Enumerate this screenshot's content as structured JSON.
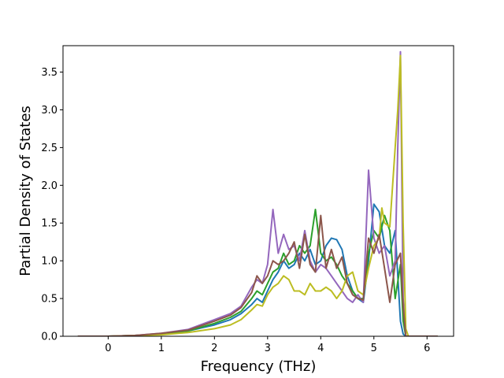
{
  "chart_data": {
    "type": "line",
    "title": "",
    "xlabel": "Frequency (THz)",
    "ylabel": "Partial Density of States",
    "xlim": [
      -0.85,
      6.5
    ],
    "ylim": [
      0.0,
      3.85
    ],
    "xticks": [
      0,
      1,
      2,
      3,
      4,
      5,
      6
    ],
    "xtick_labels": [
      "0",
      "1",
      "2",
      "3",
      "4",
      "5",
      "6"
    ],
    "yticks": [
      0.0,
      0.5,
      1.0,
      1.5,
      2.0,
      2.5,
      3.0,
      3.5
    ],
    "ytick_labels": [
      "0.0",
      "0.5",
      "1.0",
      "1.5",
      "2.0",
      "2.5",
      "3.0",
      "3.5"
    ],
    "grid": false,
    "legend": "none",
    "series": [
      {
        "color": "#1f77b4",
        "points": [
          [
            -0.57,
            0
          ],
          [
            0,
            0
          ],
          [
            0.5,
            0.01
          ],
          [
            1,
            0.03
          ],
          [
            1.5,
            0.07
          ],
          [
            2,
            0.15
          ],
          [
            2.3,
            0.22
          ],
          [
            2.5,
            0.3
          ],
          [
            2.7,
            0.42
          ],
          [
            2.8,
            0.5
          ],
          [
            2.9,
            0.45
          ],
          [
            3.0,
            0.6
          ],
          [
            3.1,
            0.75
          ],
          [
            3.2,
            0.85
          ],
          [
            3.3,
            1.0
          ],
          [
            3.4,
            0.9
          ],
          [
            3.5,
            0.95
          ],
          [
            3.6,
            1.1
          ],
          [
            3.7,
            1.0
          ],
          [
            3.8,
            1.15
          ],
          [
            3.9,
            0.95
          ],
          [
            4.0,
            1.0
          ],
          [
            4.1,
            1.2
          ],
          [
            4.2,
            1.3
          ],
          [
            4.3,
            1.28
          ],
          [
            4.4,
            1.15
          ],
          [
            4.5,
            0.8
          ],
          [
            4.6,
            0.6
          ],
          [
            4.7,
            0.5
          ],
          [
            4.8,
            0.45
          ],
          [
            4.9,
            1.0
          ],
          [
            5.0,
            1.75
          ],
          [
            5.1,
            1.65
          ],
          [
            5.2,
            1.2
          ],
          [
            5.3,
            1.1
          ],
          [
            5.4,
            1.4
          ],
          [
            5.5,
            0.2
          ],
          [
            5.55,
            0.03
          ],
          [
            5.6,
            0
          ],
          [
            6.2,
            0
          ]
        ]
      },
      {
        "color": "#2ca02c",
        "points": [
          [
            -0.57,
            0
          ],
          [
            0,
            0
          ],
          [
            0.5,
            0.01
          ],
          [
            1,
            0.03
          ],
          [
            1.5,
            0.07
          ],
          [
            2,
            0.17
          ],
          [
            2.3,
            0.25
          ],
          [
            2.5,
            0.33
          ],
          [
            2.7,
            0.5
          ],
          [
            2.8,
            0.6
          ],
          [
            2.9,
            0.55
          ],
          [
            3.0,
            0.7
          ],
          [
            3.1,
            0.85
          ],
          [
            3.2,
            0.9
          ],
          [
            3.3,
            1.1
          ],
          [
            3.4,
            0.95
          ],
          [
            3.5,
            1.0
          ],
          [
            3.6,
            1.2
          ],
          [
            3.7,
            1.1
          ],
          [
            3.8,
            1.2
          ],
          [
            3.9,
            1.68
          ],
          [
            4.0,
            1.1
          ],
          [
            4.1,
            1.0
          ],
          [
            4.2,
            1.05
          ],
          [
            4.3,
            0.95
          ],
          [
            4.4,
            0.8
          ],
          [
            4.5,
            0.7
          ],
          [
            4.6,
            0.6
          ],
          [
            4.7,
            0.5
          ],
          [
            4.8,
            0.5
          ],
          [
            4.9,
            1.1
          ],
          [
            5.0,
            1.4
          ],
          [
            5.1,
            1.3
          ],
          [
            5.2,
            1.6
          ],
          [
            5.3,
            1.4
          ],
          [
            5.4,
            0.5
          ],
          [
            5.5,
            0.95
          ],
          [
            5.55,
            0.2
          ],
          [
            5.6,
            0
          ],
          [
            6.2,
            0
          ]
        ]
      },
      {
        "color": "#9467bd",
        "points": [
          [
            -0.57,
            0
          ],
          [
            0,
            0
          ],
          [
            0.5,
            0.01
          ],
          [
            1,
            0.04
          ],
          [
            1.5,
            0.09
          ],
          [
            2,
            0.22
          ],
          [
            2.3,
            0.3
          ],
          [
            2.5,
            0.4
          ],
          [
            2.7,
            0.65
          ],
          [
            2.8,
            0.75
          ],
          [
            2.9,
            0.7
          ],
          [
            3.0,
            0.95
          ],
          [
            3.1,
            1.68
          ],
          [
            3.2,
            1.1
          ],
          [
            3.3,
            1.35
          ],
          [
            3.4,
            1.15
          ],
          [
            3.5,
            1.2
          ],
          [
            3.6,
            1.0
          ],
          [
            3.7,
            1.4
          ],
          [
            3.8,
            1.0
          ],
          [
            3.9,
            0.85
          ],
          [
            4.0,
            0.95
          ],
          [
            4.1,
            0.9
          ],
          [
            4.2,
            0.8
          ],
          [
            4.3,
            0.7
          ],
          [
            4.4,
            0.6
          ],
          [
            4.5,
            0.5
          ],
          [
            4.6,
            0.45
          ],
          [
            4.7,
            0.55
          ],
          [
            4.8,
            0.45
          ],
          [
            4.9,
            2.2
          ],
          [
            5.0,
            1.3
          ],
          [
            5.1,
            1.1
          ],
          [
            5.2,
            1.2
          ],
          [
            5.3,
            0.8
          ],
          [
            5.4,
            1.0
          ],
          [
            5.45,
            2.5
          ],
          [
            5.5,
            3.77
          ],
          [
            5.55,
            0.5
          ],
          [
            5.6,
            0
          ],
          [
            6.2,
            0
          ]
        ]
      },
      {
        "color": "#bcbd22",
        "points": [
          [
            -0.57,
            0
          ],
          [
            0,
            0
          ],
          [
            0.5,
            0.01
          ],
          [
            1,
            0.02
          ],
          [
            1.5,
            0.05
          ],
          [
            2,
            0.1
          ],
          [
            2.3,
            0.15
          ],
          [
            2.5,
            0.22
          ],
          [
            2.7,
            0.35
          ],
          [
            2.8,
            0.42
          ],
          [
            2.9,
            0.4
          ],
          [
            3.0,
            0.55
          ],
          [
            3.1,
            0.65
          ],
          [
            3.2,
            0.7
          ],
          [
            3.3,
            0.8
          ],
          [
            3.4,
            0.75
          ],
          [
            3.5,
            0.6
          ],
          [
            3.6,
            0.6
          ],
          [
            3.7,
            0.55
          ],
          [
            3.8,
            0.7
          ],
          [
            3.9,
            0.6
          ],
          [
            4.0,
            0.6
          ],
          [
            4.1,
            0.65
          ],
          [
            4.2,
            0.6
          ],
          [
            4.3,
            0.5
          ],
          [
            4.4,
            0.6
          ],
          [
            4.5,
            0.8
          ],
          [
            4.6,
            0.85
          ],
          [
            4.7,
            0.6
          ],
          [
            4.8,
            0.55
          ],
          [
            4.9,
            0.9
          ],
          [
            5.0,
            1.2
          ],
          [
            5.1,
            1.3
          ],
          [
            5.15,
            1.7
          ],
          [
            5.2,
            1.5
          ],
          [
            5.3,
            1.45
          ],
          [
            5.4,
            2.5
          ],
          [
            5.45,
            3.0
          ],
          [
            5.5,
            3.72
          ],
          [
            5.55,
            1.5
          ],
          [
            5.6,
            0.1
          ],
          [
            5.65,
            0
          ],
          [
            6.2,
            0
          ]
        ]
      },
      {
        "color": "#8c564b",
        "points": [
          [
            -0.57,
            0
          ],
          [
            0,
            0
          ],
          [
            0.5,
            0.01
          ],
          [
            1,
            0.04
          ],
          [
            1.5,
            0.08
          ],
          [
            2,
            0.2
          ],
          [
            2.3,
            0.28
          ],
          [
            2.5,
            0.38
          ],
          [
            2.7,
            0.58
          ],
          [
            2.8,
            0.8
          ],
          [
            2.9,
            0.7
          ],
          [
            3.0,
            0.8
          ],
          [
            3.1,
            1.0
          ],
          [
            3.2,
            0.95
          ],
          [
            3.3,
            1.0
          ],
          [
            3.4,
            1.1
          ],
          [
            3.5,
            1.25
          ],
          [
            3.6,
            0.9
          ],
          [
            3.7,
            1.35
          ],
          [
            3.8,
            0.95
          ],
          [
            3.9,
            0.85
          ],
          [
            4.0,
            1.6
          ],
          [
            4.1,
            0.9
          ],
          [
            4.2,
            1.15
          ],
          [
            4.3,
            0.9
          ],
          [
            4.4,
            1.05
          ],
          [
            4.5,
            0.7
          ],
          [
            4.6,
            0.55
          ],
          [
            4.7,
            0.5
          ],
          [
            4.8,
            0.48
          ],
          [
            4.9,
            1.3
          ],
          [
            5.0,
            1.1
          ],
          [
            5.1,
            1.35
          ],
          [
            5.2,
            0.9
          ],
          [
            5.3,
            0.45
          ],
          [
            5.4,
            0.95
          ],
          [
            5.5,
            1.1
          ],
          [
            5.55,
            0.4
          ],
          [
            5.6,
            0
          ],
          [
            6.2,
            0
          ]
        ]
      }
    ]
  }
}
